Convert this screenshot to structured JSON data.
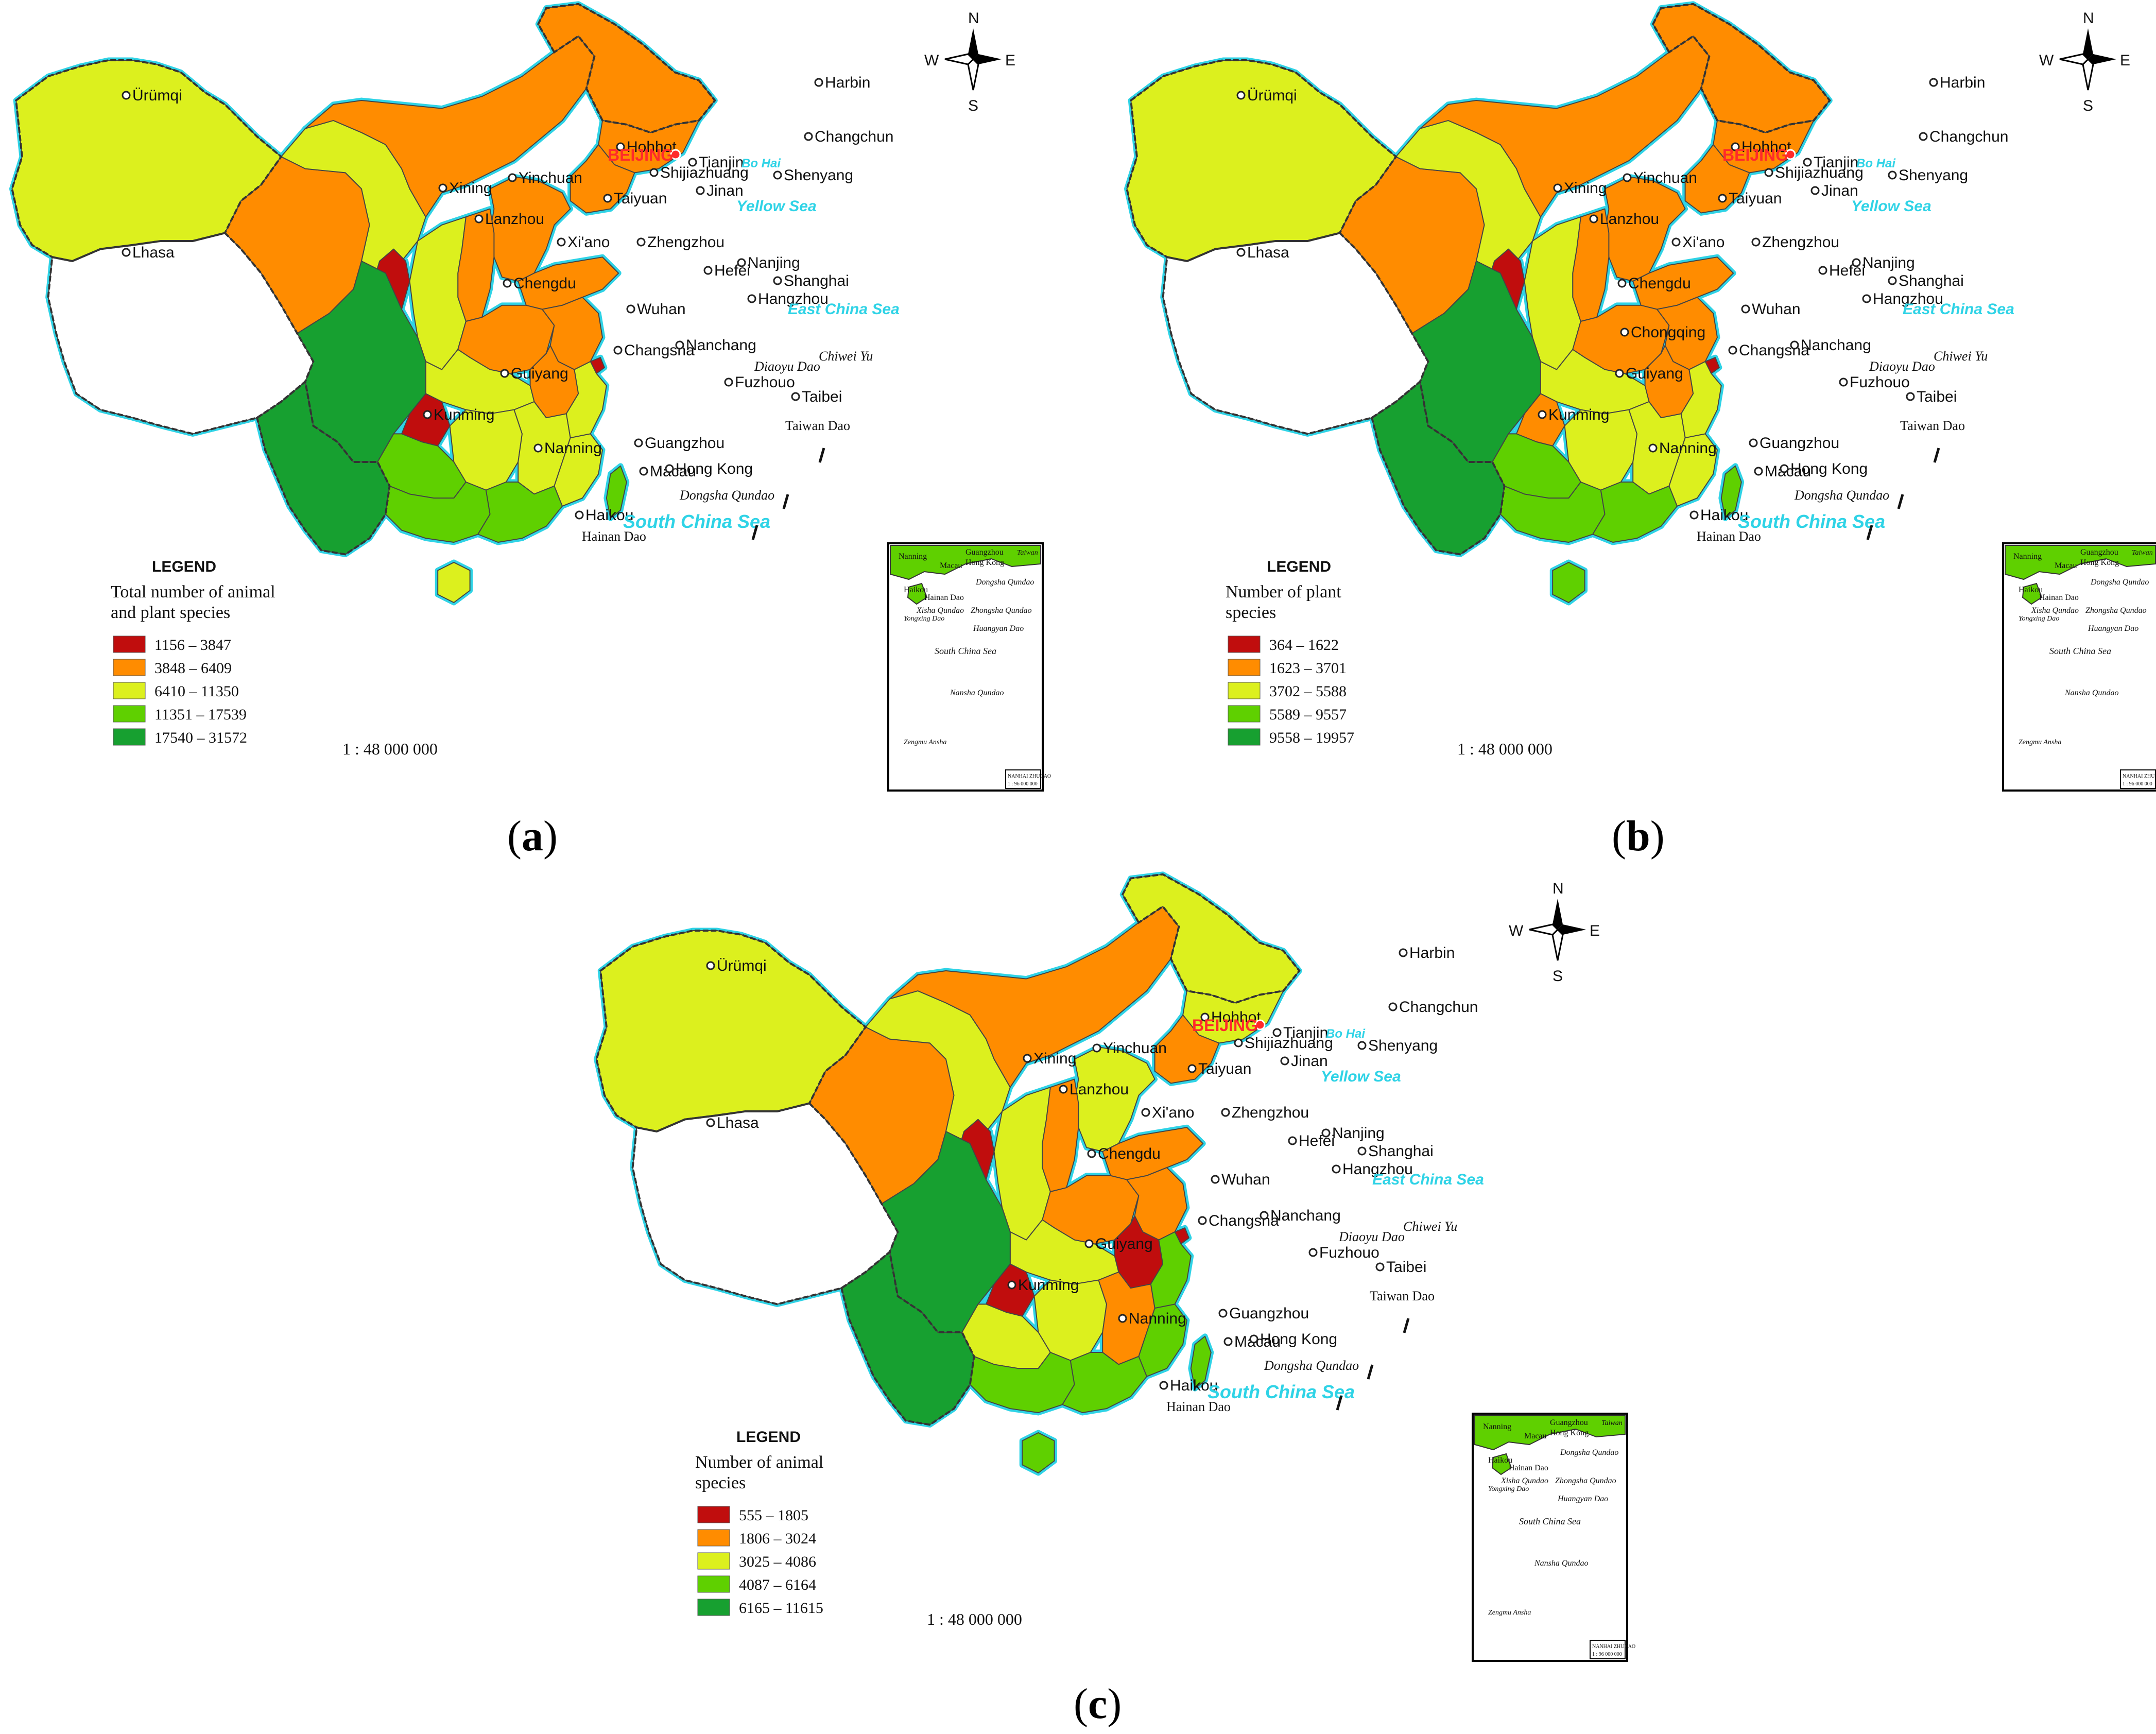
{
  "panels": [
    {
      "label": "a",
      "legend_title": "LEGEND",
      "legend_subtitle_lines": [
        "Total number of animal",
        "and plant species"
      ],
      "legend_items": [
        "1156 – 3847",
        "3848 – 6409",
        "6410 – 11350",
        "11351 – 17539",
        "17540 – 31572"
      ],
      "variant": "a"
    },
    {
      "label": "b",
      "legend_title": "LEGEND",
      "legend_subtitle_lines": [
        "Number of plant",
        "species"
      ],
      "legend_items": [
        "364 – 1622",
        "1623 – 3701",
        "3702 – 5588",
        "5589 – 9557",
        "9558 – 19957"
      ],
      "variant": "b"
    },
    {
      "label": "c",
      "legend_title": "LEGEND",
      "legend_subtitle_lines": [
        "Number of animal",
        "species"
      ],
      "legend_items": [
        "555 – 1805",
        "1806 – 3024",
        "3025 – 4086",
        "4087 – 6164",
        "6165 – 11615"
      ],
      "variant": "c"
    }
  ],
  "colors": {
    "class1": "#c00d0d",
    "class2": "#ff8c00",
    "class3": "#dcf01e",
    "class4": "#5fd000",
    "class5": "#17a030",
    "nodata": "#ffffff",
    "sea": "#2fd3e6"
  },
  "scale": "1 : 48 000 000",
  "compass": {
    "n": "N",
    "s": "S",
    "e": "E",
    "w": "W"
  },
  "capital": "BEIJING",
  "cities": {
    "urumqi": "Ürümqi",
    "harbin": "Harbin",
    "changchun": "Changchun",
    "shenyang": "Shenyang",
    "hohhot": "Hohhot",
    "tianjin": "Tianjin",
    "shijiazhuang": "Shijiazhuang",
    "taiyuan": "Taiyuan",
    "jinan": "Jinan",
    "yinchuan": "Yinchuan",
    "xining": "Xining",
    "lanzhou": "Lanzhou",
    "xian": "Xi'ano",
    "zhengzhou": "Zhengzhou",
    "hefei": "Hefei",
    "nanjing": "Nanjing",
    "shanghai": "Shanghai",
    "hangzhou": "Hangzhou",
    "wuhan": "Wuhan",
    "lhasa": "Lhasa",
    "chengdu": "Chengdu",
    "chongqing": "Chongqing",
    "changsha": "Changsha",
    "nanchang": "Nanchang",
    "fuzhou": "Fuzhouo",
    "guiyang": "Guiyang",
    "kunming": "Kunming",
    "nanning": "Nanning",
    "guangzhou": "Guangzhou",
    "macau": "Macau",
    "hongkong": "Hong Kong",
    "haikou": "Haikou",
    "taibei": "Taibei"
  },
  "seas": {
    "bohai": "Bo Hai",
    "yellow": "Yellow Sea",
    "eastchina": "East China Sea",
    "southchina": "South China Sea"
  },
  "islands": {
    "diaoyu": "Diaoyu Dao",
    "chiwei": "Chiwei Yu",
    "taiwan": "Taiwan Dao",
    "dongsha": "Dongsha Qundao",
    "hainan": "Hainan Dao"
  },
  "inset": {
    "nanning": "Nanning",
    "guangzhou": "Guangzhou",
    "hongkong": "Hong Kong",
    "taiwan": "Taiwan",
    "macau": "Macau",
    "dongsha": "Dongsha Qundao",
    "haikou": "Haikou",
    "hainan": "Hainan Dao",
    "xisha": "Xisha Qundao",
    "zhongsha": "Zhongsha Qundao",
    "huangyan": "Huangyan Dao",
    "yongxing": "Yongxing Dao",
    "nansha": "Nansha Qundao",
    "zengmu": "Zengmu Ansha",
    "southchina": "South China Sea",
    "title": "NANHAI ZHUDAO",
    "scale": "1 : 96 000 000"
  }
}
